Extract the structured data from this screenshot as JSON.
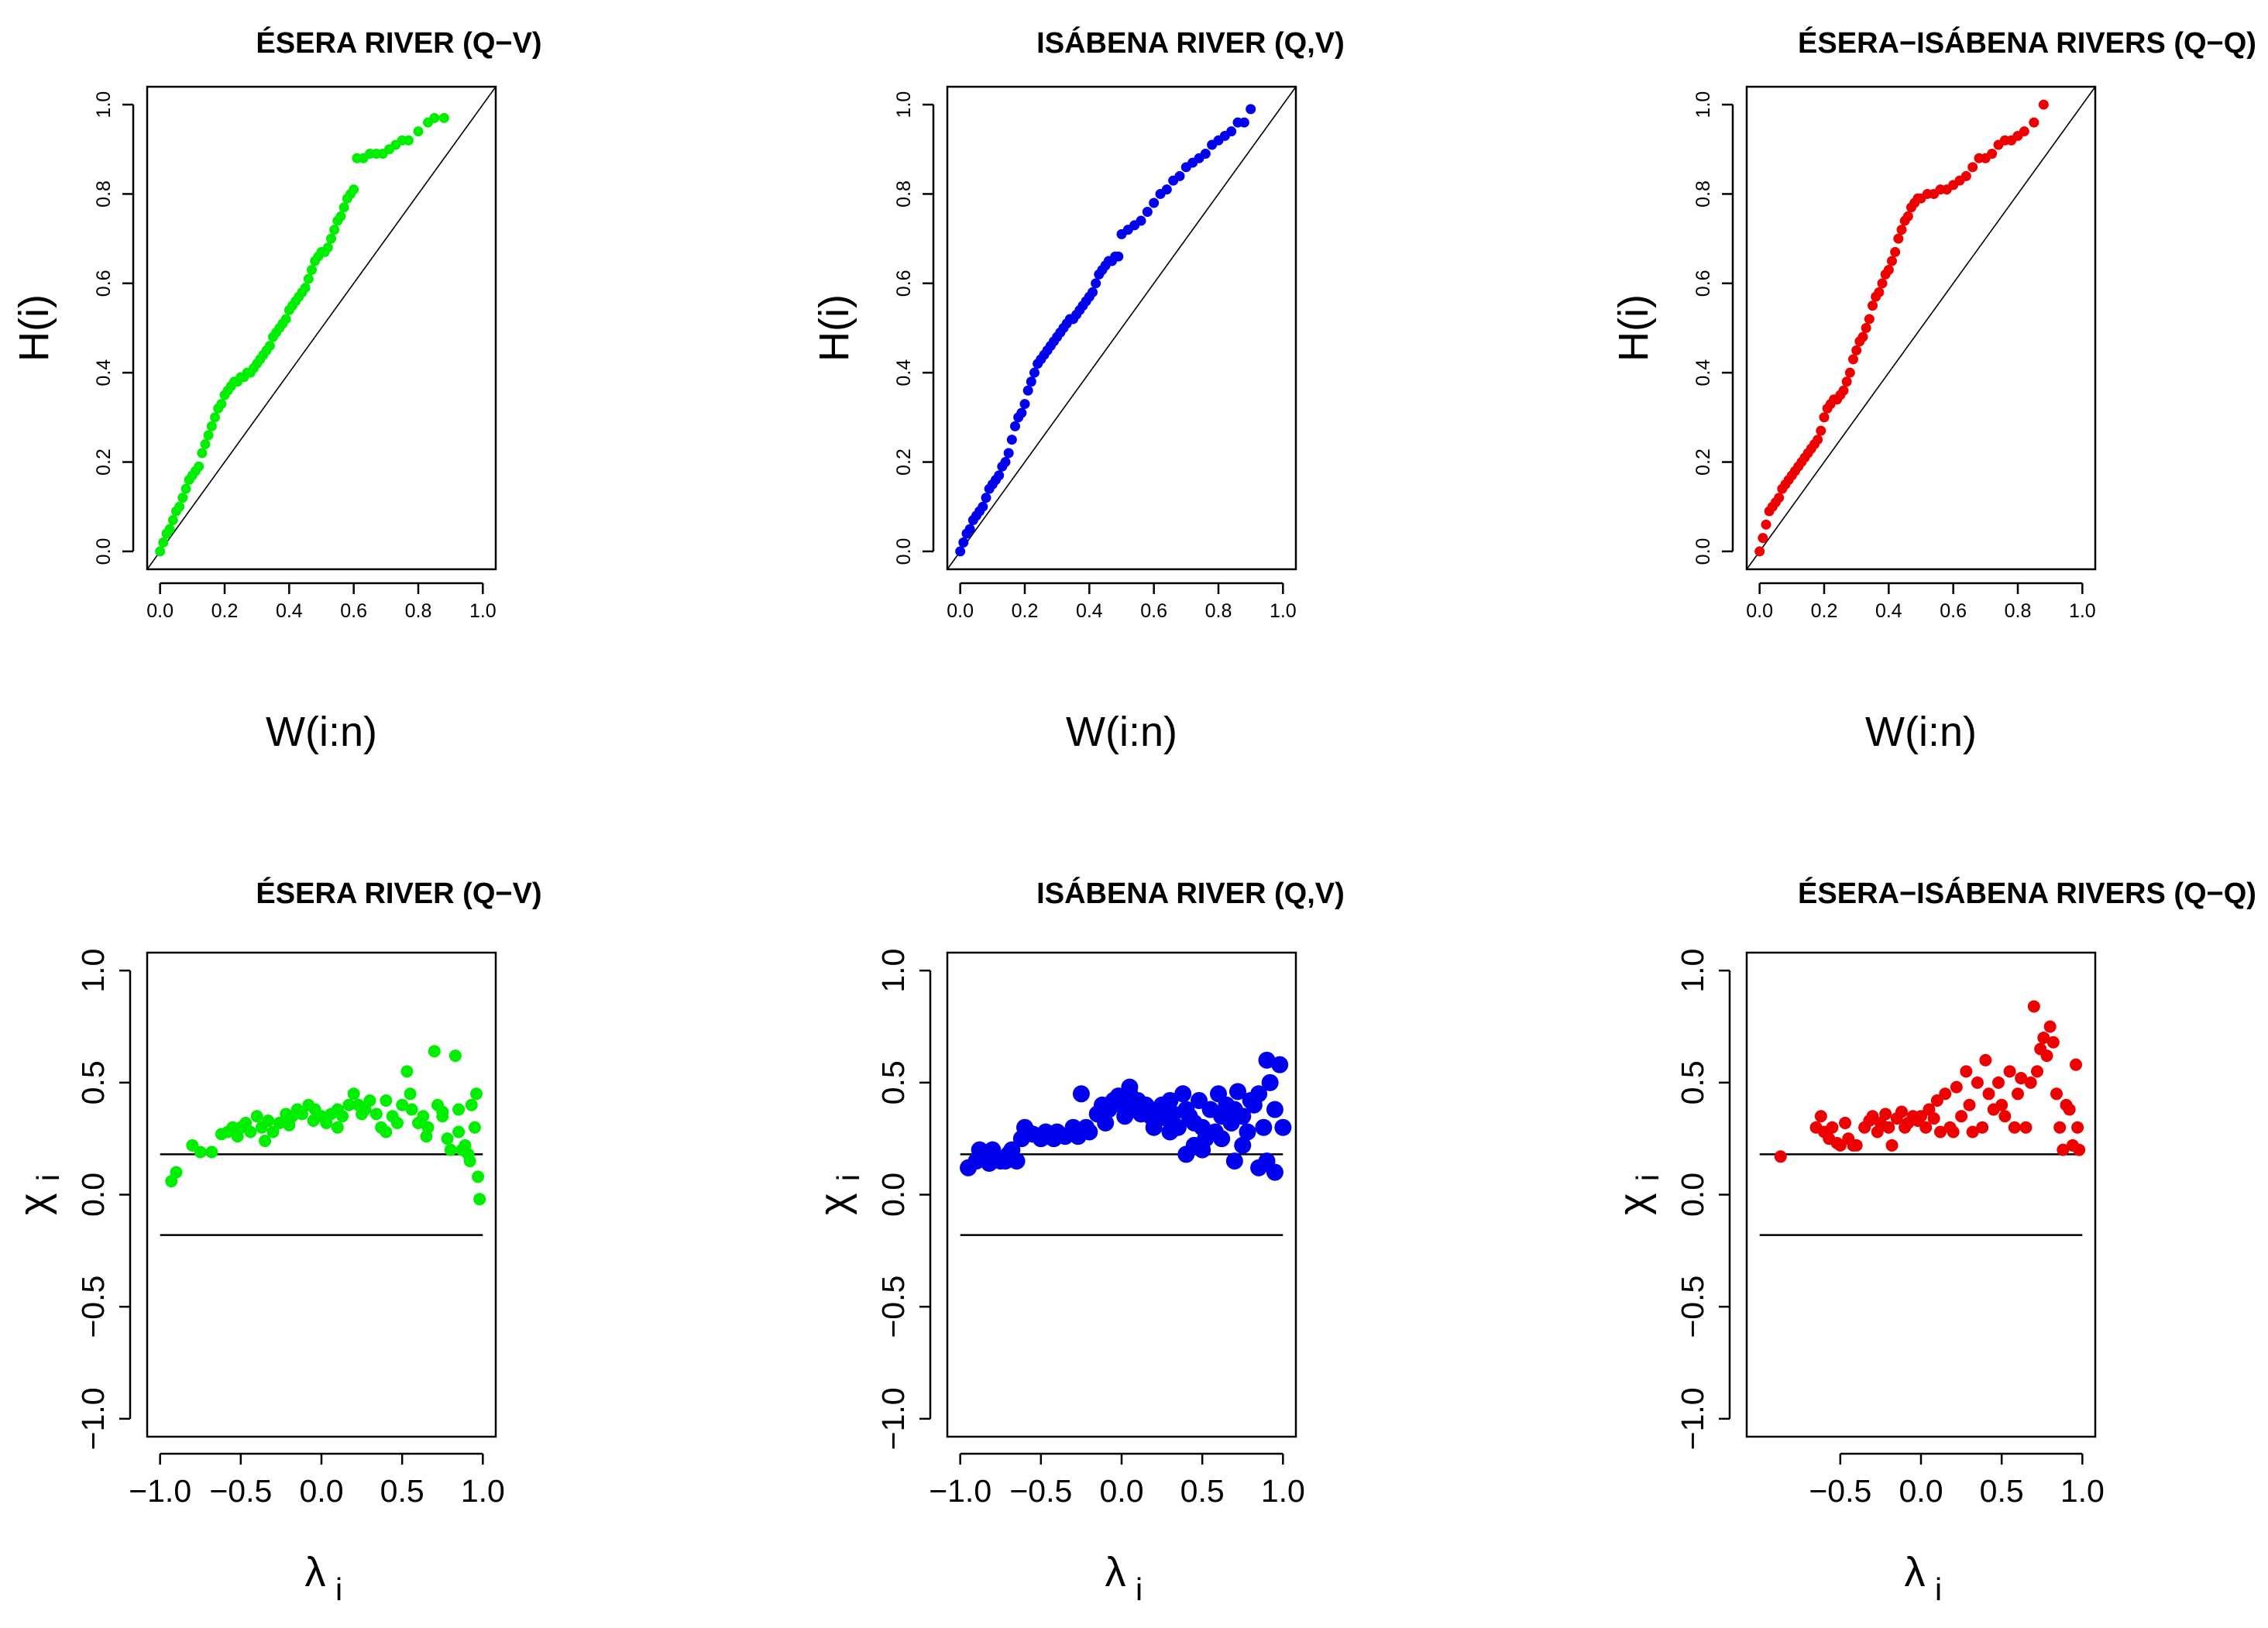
{
  "chart_data": [
    {
      "type": "scatter",
      "panel": "top-left",
      "title": "ÉSERA RIVER (Q−V)",
      "xlabel": "W(i:n)",
      "ylabel": "H(i)",
      "xlim": [
        0,
        1
      ],
      "ylim": [
        0,
        1
      ],
      "xticks": [
        "0.0",
        "0.2",
        "0.4",
        "0.6",
        "0.8",
        "1.0"
      ],
      "yticks": [
        "0.0",
        "0.2",
        "0.4",
        "0.6",
        "0.8",
        "1.0"
      ],
      "reference_line": "y = x",
      "color": "#00ee00",
      "x": [
        0.0,
        0.01,
        0.02,
        0.03,
        0.04,
        0.05,
        0.06,
        0.07,
        0.08,
        0.09,
        0.1,
        0.11,
        0.12,
        0.13,
        0.14,
        0.15,
        0.16,
        0.17,
        0.18,
        0.19,
        0.2,
        0.21,
        0.22,
        0.23,
        0.24,
        0.25,
        0.26,
        0.27,
        0.28,
        0.29,
        0.3,
        0.31,
        0.32,
        0.33,
        0.34,
        0.35,
        0.36,
        0.37,
        0.38,
        0.39,
        0.4,
        0.41,
        0.42,
        0.43,
        0.44,
        0.45,
        0.46,
        0.47,
        0.48,
        0.49,
        0.5,
        0.51,
        0.52,
        0.53,
        0.54,
        0.55,
        0.56,
        0.57,
        0.58,
        0.59,
        0.6,
        0.61,
        0.63,
        0.65,
        0.67,
        0.69,
        0.71,
        0.73,
        0.75,
        0.77,
        0.8,
        0.83,
        0.85,
        0.88
      ],
      "y": [
        0.0,
        0.02,
        0.04,
        0.05,
        0.07,
        0.09,
        0.1,
        0.12,
        0.14,
        0.16,
        0.17,
        0.18,
        0.19,
        0.22,
        0.24,
        0.26,
        0.28,
        0.3,
        0.32,
        0.33,
        0.35,
        0.36,
        0.37,
        0.38,
        0.38,
        0.39,
        0.39,
        0.4,
        0.4,
        0.41,
        0.42,
        0.43,
        0.44,
        0.45,
        0.46,
        0.48,
        0.49,
        0.5,
        0.51,
        0.52,
        0.54,
        0.55,
        0.56,
        0.57,
        0.58,
        0.59,
        0.61,
        0.63,
        0.65,
        0.66,
        0.67,
        0.67,
        0.68,
        0.7,
        0.72,
        0.74,
        0.75,
        0.77,
        0.79,
        0.8,
        0.81,
        0.88,
        0.88,
        0.89,
        0.89,
        0.89,
        0.9,
        0.91,
        0.92,
        0.92,
        0.94,
        0.96,
        0.97,
        0.97
      ]
    },
    {
      "type": "scatter",
      "panel": "top-middle",
      "title": "ISÁBENA RIVER (Q,V)",
      "xlabel": "W(i:n)",
      "ylabel": "H(i)",
      "xlim": [
        0,
        1
      ],
      "ylim": [
        0,
        1
      ],
      "xticks": [
        "0.0",
        "0.2",
        "0.4",
        "0.6",
        "0.8",
        "1.0"
      ],
      "yticks": [
        "0.0",
        "0.2",
        "0.4",
        "0.6",
        "0.8",
        "1.0"
      ],
      "reference_line": "y = x",
      "color": "#0000ee",
      "x": [
        0.0,
        0.01,
        0.02,
        0.03,
        0.04,
        0.05,
        0.06,
        0.07,
        0.08,
        0.09,
        0.1,
        0.11,
        0.12,
        0.13,
        0.14,
        0.15,
        0.16,
        0.17,
        0.18,
        0.19,
        0.2,
        0.21,
        0.22,
        0.23,
        0.24,
        0.25,
        0.26,
        0.27,
        0.28,
        0.29,
        0.3,
        0.31,
        0.32,
        0.33,
        0.34,
        0.35,
        0.36,
        0.37,
        0.38,
        0.39,
        0.4,
        0.41,
        0.42,
        0.43,
        0.44,
        0.45,
        0.46,
        0.47,
        0.48,
        0.49,
        0.5,
        0.52,
        0.54,
        0.56,
        0.58,
        0.6,
        0.62,
        0.64,
        0.66,
        0.68,
        0.7,
        0.72,
        0.74,
        0.76,
        0.78,
        0.8,
        0.82,
        0.84,
        0.86,
        0.88,
        0.9
      ],
      "y": [
        0.0,
        0.02,
        0.04,
        0.05,
        0.07,
        0.08,
        0.09,
        0.1,
        0.12,
        0.14,
        0.15,
        0.16,
        0.17,
        0.19,
        0.2,
        0.22,
        0.25,
        0.28,
        0.3,
        0.31,
        0.33,
        0.36,
        0.38,
        0.4,
        0.42,
        0.43,
        0.44,
        0.45,
        0.46,
        0.47,
        0.48,
        0.49,
        0.5,
        0.51,
        0.52,
        0.52,
        0.53,
        0.54,
        0.55,
        0.56,
        0.57,
        0.58,
        0.6,
        0.62,
        0.63,
        0.64,
        0.65,
        0.65,
        0.66,
        0.66,
        0.71,
        0.72,
        0.73,
        0.74,
        0.76,
        0.78,
        0.8,
        0.81,
        0.83,
        0.84,
        0.86,
        0.87,
        0.88,
        0.89,
        0.91,
        0.92,
        0.93,
        0.94,
        0.96,
        0.96,
        0.99
      ]
    },
    {
      "type": "scatter",
      "panel": "top-right",
      "title": "ÉSERA−ISÁBENA RIVERS (Q−Q)",
      "xlabel": "W(i:n)",
      "ylabel": "H(i)",
      "xlim": [
        0,
        1
      ],
      "ylim": [
        0,
        1
      ],
      "xticks": [
        "0.0",
        "0.2",
        "0.4",
        "0.6",
        "0.8",
        "1.0"
      ],
      "yticks": [
        "0.0",
        "0.2",
        "0.4",
        "0.6",
        "0.8",
        "1.0"
      ],
      "reference_line": "y = x",
      "color": "#ee0000",
      "x": [
        0.0,
        0.01,
        0.02,
        0.03,
        0.04,
        0.05,
        0.06,
        0.07,
        0.08,
        0.09,
        0.1,
        0.11,
        0.12,
        0.13,
        0.14,
        0.15,
        0.16,
        0.17,
        0.18,
        0.19,
        0.2,
        0.21,
        0.22,
        0.23,
        0.24,
        0.25,
        0.26,
        0.27,
        0.28,
        0.29,
        0.3,
        0.31,
        0.32,
        0.33,
        0.34,
        0.35,
        0.36,
        0.37,
        0.38,
        0.39,
        0.4,
        0.41,
        0.42,
        0.43,
        0.44,
        0.45,
        0.46,
        0.47,
        0.48,
        0.49,
        0.5,
        0.52,
        0.54,
        0.56,
        0.58,
        0.6,
        0.62,
        0.64,
        0.66,
        0.68,
        0.7,
        0.72,
        0.74,
        0.76,
        0.78,
        0.8,
        0.82,
        0.85,
        0.88
      ],
      "y": [
        0.0,
        0.03,
        0.06,
        0.09,
        0.1,
        0.11,
        0.12,
        0.14,
        0.15,
        0.16,
        0.17,
        0.18,
        0.19,
        0.2,
        0.21,
        0.22,
        0.23,
        0.24,
        0.25,
        0.27,
        0.3,
        0.32,
        0.33,
        0.34,
        0.34,
        0.35,
        0.36,
        0.38,
        0.4,
        0.43,
        0.45,
        0.47,
        0.48,
        0.5,
        0.52,
        0.55,
        0.57,
        0.58,
        0.6,
        0.62,
        0.63,
        0.65,
        0.67,
        0.7,
        0.72,
        0.74,
        0.75,
        0.77,
        0.78,
        0.79,
        0.79,
        0.8,
        0.8,
        0.81,
        0.81,
        0.82,
        0.83,
        0.84,
        0.86,
        0.88,
        0.88,
        0.89,
        0.91,
        0.92,
        0.92,
        0.93,
        0.94,
        0.96,
        1.0
      ]
    },
    {
      "type": "scatter",
      "panel": "bottom-left",
      "title": "ÉSERA RIVER (Q−V)",
      "xlabel": "λ",
      "xlabel_sub": "i",
      "ylabel": "χ",
      "ylabel_sub": "i",
      "xlim": [
        -1,
        1
      ],
      "ylim": [
        -1,
        1
      ],
      "xticks": [
        "−1.0",
        "−0.5",
        "0.0",
        "0.5",
        "1.0"
      ],
      "yticks": [
        "−1.0",
        "−0.5",
        "0.0",
        "0.5",
        "1.0"
      ],
      "hlines": [
        0.18,
        -0.18
      ],
      "color": "#00ee00",
      "x": [
        -0.93,
        -0.9,
        -0.8,
        -0.75,
        -0.68,
        -0.62,
        -0.58,
        -0.55,
        -0.5,
        -0.47,
        -0.44,
        -0.4,
        -0.37,
        -0.33,
        -0.3,
        -0.26,
        -0.22,
        -0.18,
        -0.15,
        -0.12,
        -0.08,
        -0.04,
        0.0,
        0.03,
        0.06,
        0.1,
        0.13,
        0.17,
        0.2,
        0.23,
        0.27,
        0.3,
        0.34,
        0.37,
        0.4,
        0.44,
        0.47,
        0.5,
        0.53,
        0.56,
        0.6,
        0.63,
        0.66,
        0.7,
        0.72,
        0.75,
        0.78,
        0.8,
        0.83,
        0.85,
        0.87,
        0.89,
        0.91,
        0.93,
        0.95,
        0.96,
        0.97,
        0.98,
        -0.52,
        -0.35,
        -0.2,
        -0.05,
        0.1,
        0.25,
        0.4,
        0.55,
        0.65,
        0.75,
        0.85,
        0.92
      ],
      "y": [
        0.06,
        0.1,
        0.22,
        0.19,
        0.19,
        0.27,
        0.28,
        0.3,
        0.3,
        0.32,
        0.28,
        0.35,
        0.3,
        0.33,
        0.28,
        0.32,
        0.36,
        0.35,
        0.38,
        0.36,
        0.4,
        0.38,
        0.35,
        0.32,
        0.36,
        0.38,
        0.35,
        0.4,
        0.45,
        0.4,
        0.38,
        0.42,
        0.36,
        0.3,
        0.42,
        0.35,
        0.32,
        0.4,
        0.55,
        0.38,
        0.32,
        0.35,
        0.3,
        0.64,
        0.4,
        0.35,
        0.25,
        0.2,
        0.62,
        0.38,
        0.2,
        0.22,
        0.18,
        0.4,
        0.3,
        0.45,
        0.08,
        -0.02,
        0.26,
        0.24,
        0.31,
        0.33,
        0.3,
        0.36,
        0.28,
        0.45,
        0.26,
        0.37,
        0.28,
        0.15
      ]
    },
    {
      "type": "scatter",
      "panel": "bottom-middle",
      "title": "ISÁBENA RIVER (Q,V)",
      "xlabel": "λ",
      "xlabel_sub": "i",
      "ylabel": "χ",
      "ylabel_sub": "i",
      "xlim": [
        -1,
        1
      ],
      "ylim": [
        -1,
        1
      ],
      "xticks": [
        "−1.0",
        "−0.5",
        "0.0",
        "0.5",
        "1.0"
      ],
      "yticks": [
        "−1.0",
        "−0.5",
        "0.0",
        "0.5",
        "1.0"
      ],
      "hlines": [
        0.18,
        -0.18
      ],
      "color": "#0000ee",
      "x": [
        -0.95,
        -0.9,
        -0.88,
        -0.85,
        -0.82,
        -0.8,
        -0.78,
        -0.75,
        -0.72,
        -0.7,
        -0.68,
        -0.65,
        -0.62,
        -0.6,
        -0.58,
        -0.55,
        -0.5,
        -0.47,
        -0.45,
        -0.42,
        -0.4,
        -0.35,
        -0.3,
        -0.27,
        -0.25,
        -0.22,
        -0.2,
        -0.15,
        -0.12,
        -0.1,
        -0.08,
        -0.05,
        -0.02,
        0.0,
        0.02,
        0.05,
        0.08,
        0.1,
        0.12,
        0.15,
        0.18,
        0.2,
        0.22,
        0.25,
        0.28,
        0.3,
        0.32,
        0.35,
        0.38,
        0.4,
        0.42,
        0.45,
        0.48,
        0.5,
        0.52,
        0.55,
        0.58,
        0.6,
        0.62,
        0.65,
        0.68,
        0.7,
        0.72,
        0.75,
        0.78,
        0.8,
        0.82,
        0.85,
        0.88,
        0.9,
        0.92,
        0.95,
        0.98,
        1.0,
        0.4,
        0.5,
        0.75,
        0.85,
        0.9,
        0.95,
        0.05,
        0.3,
        0.45,
        0.62,
        0.7
      ],
      "y": [
        0.12,
        0.15,
        0.2,
        0.18,
        0.14,
        0.2,
        0.16,
        0.15,
        0.15,
        0.18,
        0.2,
        0.15,
        0.25,
        0.3,
        0.28,
        0.27,
        0.25,
        0.28,
        0.26,
        0.25,
        0.28,
        0.26,
        0.3,
        0.26,
        0.45,
        0.3,
        0.28,
        0.36,
        0.4,
        0.32,
        0.38,
        0.42,
        0.44,
        0.4,
        0.35,
        0.45,
        0.38,
        0.42,
        0.36,
        0.4,
        0.35,
        0.3,
        0.38,
        0.4,
        0.34,
        0.42,
        0.36,
        0.3,
        0.45,
        0.38,
        0.35,
        0.32,
        0.42,
        0.3,
        0.25,
        0.38,
        0.28,
        0.45,
        0.35,
        0.4,
        0.32,
        0.38,
        0.46,
        0.35,
        0.28,
        0.42,
        0.4,
        0.45,
        0.3,
        0.6,
        0.5,
        0.38,
        0.58,
        0.3,
        0.18,
        0.2,
        0.22,
        0.12,
        0.15,
        0.1,
        0.48,
        0.28,
        0.22,
        0.25,
        0.15
      ]
    },
    {
      "type": "scatter",
      "panel": "bottom-right",
      "title": "ÉSERA−ISÁBENA RIVERS (Q−Q)",
      "xlabel": "λ",
      "xlabel_sub": "i",
      "ylabel": "χ",
      "ylabel_sub": "i",
      "xlim": [
        -1,
        1
      ],
      "ylim": [
        -1,
        1
      ],
      "xticks": [
        "−0.5",
        "0.0",
        "0.5",
        "1.0"
      ],
      "yticks": [
        "−1.0",
        "−0.5",
        "0.0",
        "0.5",
        "1.0"
      ],
      "hlines": [
        0.18,
        -0.18
      ],
      "color": "#ee0000",
      "x": [
        -0.87,
        -0.65,
        -0.62,
        -0.6,
        -0.57,
        -0.55,
        -0.52,
        -0.5,
        -0.47,
        -0.45,
        -0.42,
        -0.4,
        -0.35,
        -0.32,
        -0.3,
        -0.27,
        -0.25,
        -0.22,
        -0.2,
        -0.18,
        -0.15,
        -0.12,
        -0.1,
        -0.08,
        -0.05,
        -0.02,
        0.0,
        0.03,
        0.05,
        0.08,
        0.1,
        0.12,
        0.15,
        0.18,
        0.2,
        0.22,
        0.25,
        0.28,
        0.3,
        0.32,
        0.35,
        0.38,
        0.4,
        0.42,
        0.45,
        0.48,
        0.5,
        0.52,
        0.55,
        0.58,
        0.6,
        0.62,
        0.65,
        0.68,
        0.7,
        0.72,
        0.74,
        0.76,
        0.78,
        0.8,
        0.82,
        0.84,
        0.86,
        0.88,
        0.9,
        0.92,
        0.94,
        0.96,
        0.97,
        0.98
      ],
      "y": [
        0.17,
        0.3,
        0.35,
        0.28,
        0.25,
        0.3,
        0.23,
        0.22,
        0.32,
        0.25,
        0.22,
        0.22,
        0.3,
        0.33,
        0.35,
        0.28,
        0.32,
        0.36,
        0.3,
        0.22,
        0.34,
        0.37,
        0.3,
        0.32,
        0.35,
        0.33,
        0.35,
        0.3,
        0.38,
        0.34,
        0.42,
        0.28,
        0.45,
        0.3,
        0.28,
        0.48,
        0.35,
        0.55,
        0.4,
        0.28,
        0.5,
        0.3,
        0.6,
        0.45,
        0.38,
        0.5,
        0.4,
        0.35,
        0.55,
        0.3,
        0.45,
        0.52,
        0.3,
        0.5,
        0.84,
        0.55,
        0.65,
        0.7,
        0.62,
        0.75,
        0.68,
        0.45,
        0.3,
        0.2,
        0.4,
        0.38,
        0.22,
        0.58,
        0.3,
        0.2
      ]
    }
  ]
}
